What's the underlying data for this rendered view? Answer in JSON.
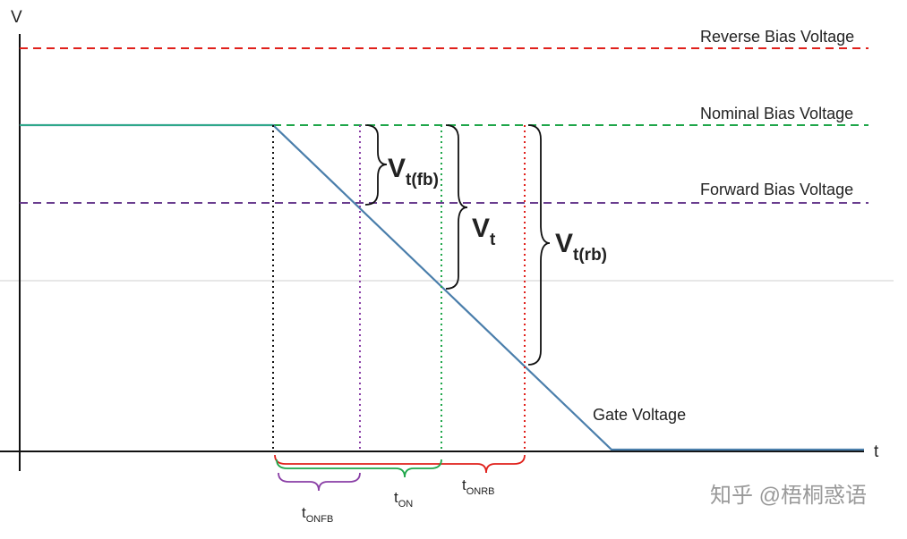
{
  "axes": {
    "y_label": "V",
    "x_label": "t"
  },
  "levels": {
    "reverse": {
      "label": "Reverse Bias Voltage",
      "color": "#e0201b"
    },
    "nominal": {
      "label": "Nominal Bias Voltage",
      "color": "#1fa64a"
    },
    "forward": {
      "label": "Forward Bias Voltage",
      "color": "#6a3d8f"
    }
  },
  "gate_voltage": {
    "label": "Gate Voltage",
    "color": "#4a7eab"
  },
  "thresholds": {
    "vt_fb": {
      "main": "V",
      "sub": "t(fb)"
    },
    "vt": {
      "main": "V",
      "sub": "t"
    },
    "vt_rb": {
      "main": "V",
      "sub": "t(rb)"
    }
  },
  "time_labels": {
    "t_onfb": {
      "main": "t",
      "sub": "ONFB",
      "color": "#8a3fa6"
    },
    "t_on": {
      "main": "t",
      "sub": "ON",
      "color": "#1fa64a"
    },
    "t_onrb": {
      "main": "t",
      "sub": "ONRB",
      "color": "#e0201b"
    }
  },
  "start_marker_color": "#111111",
  "watermark": "知乎 @梧桐惑语"
}
